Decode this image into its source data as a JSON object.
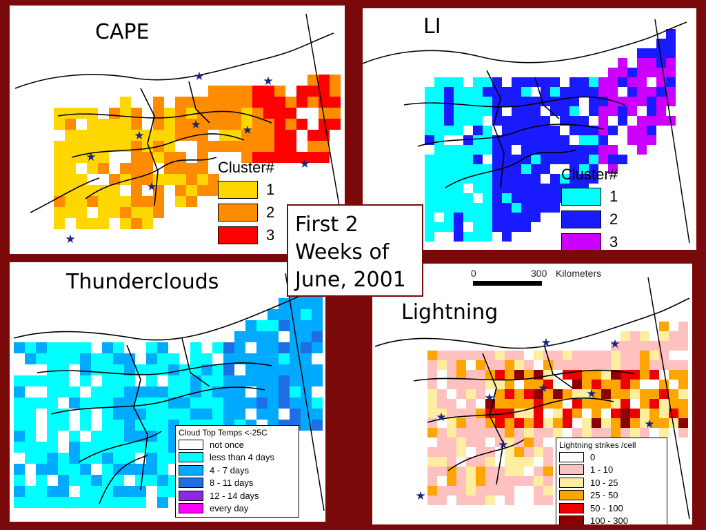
{
  "colors": {
    "background": "#7a0a0a"
  },
  "panels": {
    "cape": {
      "title": "CAPE",
      "legend_title": "Cluster#",
      "items": [
        {
          "label": "1",
          "color": "#ffd700"
        },
        {
          "label": "2",
          "color": "#ff8c00"
        },
        {
          "label": "3",
          "color": "#ff0000"
        }
      ]
    },
    "li": {
      "title": "LI",
      "legend_title": "Cluster#",
      "items": [
        {
          "label": "1",
          "color": "#00ffff"
        },
        {
          "label": "2",
          "color": "#1a1aff"
        },
        {
          "label": "3",
          "color": "#cc00ff"
        }
      ]
    },
    "thunderclouds": {
      "title": "Thunderclouds",
      "legend_title": "Cloud Top Temps <-25C",
      "items": [
        {
          "label": "not once",
          "color": "#ffffff"
        },
        {
          "label": "less than 4 days",
          "color": "#00ffff"
        },
        {
          "label": "4 - 7 days",
          "color": "#00aaff"
        },
        {
          "label": "8 - 11 days",
          "color": "#1e6ee6"
        },
        {
          "label": "12 - 14 days",
          "color": "#8a2be2"
        },
        {
          "label": "every day",
          "color": "#ff00ff"
        }
      ]
    },
    "lightning": {
      "title": "Lightning",
      "legend_title": "Lightning strikes /cell",
      "items": [
        {
          "label": "0",
          "color": "#ffffff"
        },
        {
          "label": "1 - 10",
          "color": "#ffc0c0"
        },
        {
          "label": "10 - 25",
          "color": "#ffeea0"
        },
        {
          "label": "25 - 50",
          "color": "#ffa500"
        },
        {
          "label": "50 - 100",
          "color": "#ee0000"
        },
        {
          "label": "100 - 300",
          "color": "#8b0000"
        }
      ]
    }
  },
  "center_caption": {
    "line1": "First 2",
    "line2": "Weeks of",
    "line3": "June, 2001"
  },
  "scale_bar": {
    "start": "0",
    "end": "300",
    "unit": "Kilometers"
  }
}
